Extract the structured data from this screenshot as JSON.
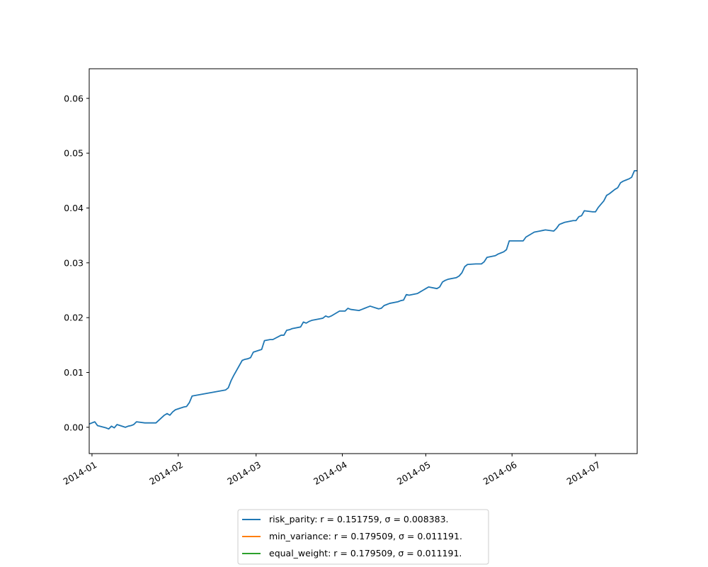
{
  "chart_data": {
    "type": "line",
    "title": "",
    "xlabel": "",
    "ylabel": "",
    "x_axis_kind": "date",
    "xlim": [
      "2013-12-31",
      "2014-07-16"
    ],
    "ylim": [
      -0.0048,
      0.0654
    ],
    "x_ticks": [
      "2014-01-01",
      "2014-02-01",
      "2014-03-01",
      "2014-04-01",
      "2014-05-01",
      "2014-06-01",
      "2014-07-01"
    ],
    "x_tick_labels": [
      "2014-01",
      "2014-02",
      "2014-03",
      "2014-04",
      "2014-05",
      "2014-06",
      "2014-07"
    ],
    "y_ticks": [
      0.0,
      0.01,
      0.02,
      0.03,
      0.04,
      0.05,
      0.06
    ],
    "y_tick_labels": [
      "0.00",
      "0.01",
      "0.02",
      "0.03",
      "0.04",
      "0.05",
      "0.06"
    ],
    "grid": false,
    "legend_position": "below-center",
    "series": [
      {
        "name": "risk_parity: r = 0.151759, σ = 0.008383.",
        "color": "#1f77b4",
        "points": [
          [
            "2013-12-31",
            0.0006
          ],
          [
            "2014-01-02",
            0.001
          ],
          [
            "2014-01-03",
            0.0003
          ],
          [
            "2014-01-06",
            -0.0001
          ],
          [
            "2014-01-07",
            -0.0003
          ],
          [
            "2014-01-08",
            0.0002
          ],
          [
            "2014-01-09",
            -0.0001
          ],
          [
            "2014-01-10",
            0.0005
          ],
          [
            "2014-01-13",
            0.0
          ],
          [
            "2014-01-14",
            0.0002
          ],
          [
            "2014-01-15",
            0.0003
          ],
          [
            "2014-01-16",
            0.0005
          ],
          [
            "2014-01-17",
            0.001
          ],
          [
            "2014-01-20",
            0.0008
          ],
          [
            "2014-01-21",
            0.0008
          ],
          [
            "2014-01-22",
            0.0008
          ],
          [
            "2014-01-23",
            0.0008
          ],
          [
            "2014-01-24",
            0.0008
          ],
          [
            "2014-01-27",
            0.0022
          ],
          [
            "2014-01-28",
            0.0025
          ],
          [
            "2014-01-29",
            0.0022
          ],
          [
            "2014-01-30",
            0.0028
          ],
          [
            "2014-01-31",
            0.0032
          ],
          [
            "2014-02-03",
            0.0037
          ],
          [
            "2014-02-04",
            0.0038
          ],
          [
            "2014-02-05",
            0.0045
          ],
          [
            "2014-02-06",
            0.0057
          ],
          [
            "2014-02-18",
            0.0068
          ],
          [
            "2014-02-19",
            0.0072
          ],
          [
            "2014-02-20",
            0.0085
          ],
          [
            "2014-02-21",
            0.0095
          ],
          [
            "2014-02-24",
            0.0122
          ],
          [
            "2014-02-25",
            0.0124
          ],
          [
            "2014-02-26",
            0.0125
          ],
          [
            "2014-02-27",
            0.0127
          ],
          [
            "2014-02-28",
            0.0137
          ],
          [
            "2014-03-03",
            0.0142
          ],
          [
            "2014-03-04",
            0.0158
          ],
          [
            "2014-03-05",
            0.0159
          ],
          [
            "2014-03-06",
            0.016
          ],
          [
            "2014-03-07",
            0.016
          ],
          [
            "2014-03-10",
            0.0168
          ],
          [
            "2014-03-11",
            0.0168
          ],
          [
            "2014-03-12",
            0.0177
          ],
          [
            "2014-03-13",
            0.0178
          ],
          [
            "2014-03-14",
            0.018
          ],
          [
            "2014-03-17",
            0.0183
          ],
          [
            "2014-03-18",
            0.0192
          ],
          [
            "2014-03-19",
            0.019
          ],
          [
            "2014-03-20",
            0.0193
          ],
          [
            "2014-03-21",
            0.0195
          ],
          [
            "2014-03-24",
            0.0198
          ],
          [
            "2014-03-25",
            0.0199
          ],
          [
            "2014-03-26",
            0.0203
          ],
          [
            "2014-03-27",
            0.0201
          ],
          [
            "2014-03-28",
            0.0203
          ],
          [
            "2014-03-31",
            0.0212
          ],
          [
            "2014-04-01",
            0.0212
          ],
          [
            "2014-04-02",
            0.0212
          ],
          [
            "2014-04-03",
            0.0217
          ],
          [
            "2014-04-04",
            0.0215
          ],
          [
            "2014-04-07",
            0.0213
          ],
          [
            "2014-04-08",
            0.0215
          ],
          [
            "2014-04-09",
            0.0217
          ],
          [
            "2014-04-10",
            0.0219
          ],
          [
            "2014-04-11",
            0.0221
          ],
          [
            "2014-04-14",
            0.0216
          ],
          [
            "2014-04-15",
            0.0217
          ],
          [
            "2014-04-16",
            0.0222
          ],
          [
            "2014-04-17",
            0.0224
          ],
          [
            "2014-04-18",
            0.0226
          ],
          [
            "2014-04-21",
            0.0229
          ],
          [
            "2014-04-22",
            0.0231
          ],
          [
            "2014-04-23",
            0.0232
          ],
          [
            "2014-04-24",
            0.0242
          ],
          [
            "2014-04-25",
            0.0241
          ],
          [
            "2014-04-28",
            0.0244
          ],
          [
            "2014-04-29",
            0.0247
          ],
          [
            "2014-04-30",
            0.025
          ],
          [
            "2014-05-01",
            0.0253
          ],
          [
            "2014-05-02",
            0.0256
          ],
          [
            "2014-05-05",
            0.0253
          ],
          [
            "2014-05-06",
            0.0256
          ],
          [
            "2014-05-07",
            0.0265
          ],
          [
            "2014-05-08",
            0.0268
          ],
          [
            "2014-05-09",
            0.027
          ],
          [
            "2014-05-12",
            0.0273
          ],
          [
            "2014-05-13",
            0.0276
          ],
          [
            "2014-05-14",
            0.0282
          ],
          [
            "2014-05-15",
            0.0293
          ],
          [
            "2014-05-16",
            0.0297
          ],
          [
            "2014-05-19",
            0.0298
          ],
          [
            "2014-05-20",
            0.0298
          ],
          [
            "2014-05-21",
            0.0298
          ],
          [
            "2014-05-22",
            0.0302
          ],
          [
            "2014-05-23",
            0.031
          ],
          [
            "2014-05-26",
            0.0313
          ],
          [
            "2014-05-27",
            0.0316
          ],
          [
            "2014-05-28",
            0.0318
          ],
          [
            "2014-05-29",
            0.032
          ],
          [
            "2014-05-30",
            0.0324
          ],
          [
            "2014-05-31",
            0.034
          ],
          [
            "2014-06-01",
            0.034
          ],
          [
            "2014-06-04",
            0.034
          ],
          [
            "2014-06-05",
            0.034
          ],
          [
            "2014-06-06",
            0.0347
          ],
          [
            "2014-06-09",
            0.0356
          ],
          [
            "2014-06-10",
            0.0357
          ],
          [
            "2014-06-11",
            0.0358
          ],
          [
            "2014-06-12",
            0.0359
          ],
          [
            "2014-06-13",
            0.036
          ],
          [
            "2014-06-16",
            0.0358
          ],
          [
            "2014-06-17",
            0.0363
          ],
          [
            "2014-06-18",
            0.037
          ],
          [
            "2014-06-19",
            0.0372
          ],
          [
            "2014-06-20",
            0.0374
          ],
          [
            "2014-06-23",
            0.0377
          ],
          [
            "2014-06-24",
            0.0377
          ],
          [
            "2014-06-25",
            0.0384
          ],
          [
            "2014-06-26",
            0.0386
          ],
          [
            "2014-06-27",
            0.0395
          ],
          [
            "2014-06-30",
            0.0393
          ],
          [
            "2014-07-01",
            0.0393
          ],
          [
            "2014-07-02",
            0.0401
          ],
          [
            "2014-07-03",
            0.0407
          ],
          [
            "2014-07-04",
            0.0413
          ],
          [
            "2014-07-05",
            0.0423
          ],
          [
            "2014-07-06",
            0.0426
          ],
          [
            "2014-07-07",
            0.043
          ],
          [
            "2014-07-08",
            0.0434
          ],
          [
            "2014-07-09",
            0.0437
          ],
          [
            "2014-07-10",
            0.0446
          ],
          [
            "2014-07-11",
            0.0449
          ],
          [
            "2014-07-12",
            0.0451
          ],
          [
            "2014-07-13",
            0.0453
          ],
          [
            "2014-07-14",
            0.0456
          ],
          [
            "2014-07-15",
            0.0468
          ],
          [
            "2014-07-16",
            0.0468
          ]
        ]
      },
      {
        "name": "min_variance: r = 0.179509, σ = 0.011191.",
        "color": "#ff7f0e",
        "points": []
      },
      {
        "name": "equal_weight: r = 0.179509, σ = 0.011191.",
        "color": "#2ca02c",
        "points": []
      }
    ]
  }
}
